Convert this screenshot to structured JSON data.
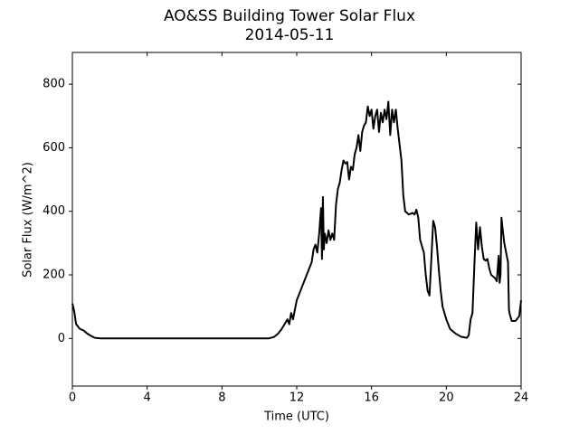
{
  "chart_data": {
    "type": "line",
    "title": "AO&SS Building Tower Solar Flux",
    "subtitle": "2014-05-11",
    "x_label": "Time (UTC)",
    "y_label": "Solar Flux (W/m^2)",
    "xlim": [
      0,
      24
    ],
    "xticks": [
      0,
      4,
      8,
      12,
      16,
      20,
      24
    ],
    "ylim": [
      -150,
      900
    ],
    "yticks": [
      0,
      200,
      400,
      600,
      800
    ],
    "series": [
      {
        "name": "Solar Flux",
        "color": "#000000",
        "x": [
          0,
          0.1,
          0.2,
          0.4,
          0.6,
          0.8,
          1.0,
          1.2,
          1.5,
          2,
          4,
          6,
          8,
          10,
          10.5,
          10.8,
          11.0,
          11.2,
          11.4,
          11.5,
          11.6,
          11.7,
          11.8,
          12.0,
          12.2,
          12.4,
          12.6,
          12.8,
          12.9,
          13.0,
          13.1,
          13.2,
          13.3,
          13.35,
          13.4,
          13.45,
          13.5,
          13.6,
          13.7,
          13.8,
          13.9,
          14.0,
          14.1,
          14.2,
          14.3,
          14.4,
          14.5,
          14.6,
          14.7,
          14.8,
          14.9,
          15.0,
          15.1,
          15.2,
          15.3,
          15.4,
          15.5,
          15.6,
          15.7,
          15.8,
          15.9,
          16.0,
          16.1,
          16.2,
          16.3,
          16.4,
          16.5,
          16.6,
          16.7,
          16.8,
          16.9,
          17.0,
          17.1,
          17.2,
          17.3,
          17.4,
          17.5,
          17.6,
          17.7,
          17.8,
          18.0,
          18.2,
          18.3,
          18.4,
          18.5,
          18.6,
          18.8,
          18.9,
          19.0,
          19.1,
          19.2,
          19.3,
          19.4,
          19.5,
          19.6,
          19.7,
          19.8,
          20.0,
          20.2,
          20.5,
          20.8,
          21.1,
          21.2,
          21.3,
          21.4,
          21.5,
          21.6,
          21.7,
          21.8,
          21.9,
          22.0,
          22.1,
          22.2,
          22.3,
          22.4,
          22.6,
          22.7,
          22.8,
          22.85,
          22.9,
          22.95,
          23.0,
          23.1,
          23.3,
          23.35,
          23.4,
          23.5,
          23.7,
          23.9,
          24
        ],
        "values": [
          110,
          85,
          45,
          30,
          25,
          15,
          8,
          2,
          0,
          0,
          0,
          0,
          0,
          0,
          0,
          5,
          15,
          30,
          50,
          60,
          45,
          80,
          60,
          120,
          150,
          180,
          210,
          240,
          280,
          295,
          270,
          330,
          410,
          250,
          445,
          280,
          330,
          300,
          340,
          310,
          330,
          310,
          420,
          470,
          490,
          530,
          560,
          550,
          555,
          500,
          540,
          530,
          580,
          600,
          640,
          590,
          650,
          670,
          680,
          730,
          700,
          720,
          660,
          700,
          720,
          650,
          710,
          680,
          720,
          690,
          745,
          640,
          720,
          680,
          720,
          660,
          610,
          560,
          450,
          400,
          390,
          395,
          390,
          405,
          380,
          310,
          270,
          200,
          150,
          135,
          250,
          370,
          350,
          290,
          215,
          150,
          100,
          60,
          30,
          15,
          5,
          2,
          10,
          60,
          80,
          230,
          365,
          280,
          350,
          290,
          250,
          245,
          250,
          220,
          200,
          190,
          180,
          260,
          175,
          200,
          380,
          350,
          300,
          240,
          90,
          75,
          55,
          55,
          70,
          120
        ]
      }
    ]
  }
}
